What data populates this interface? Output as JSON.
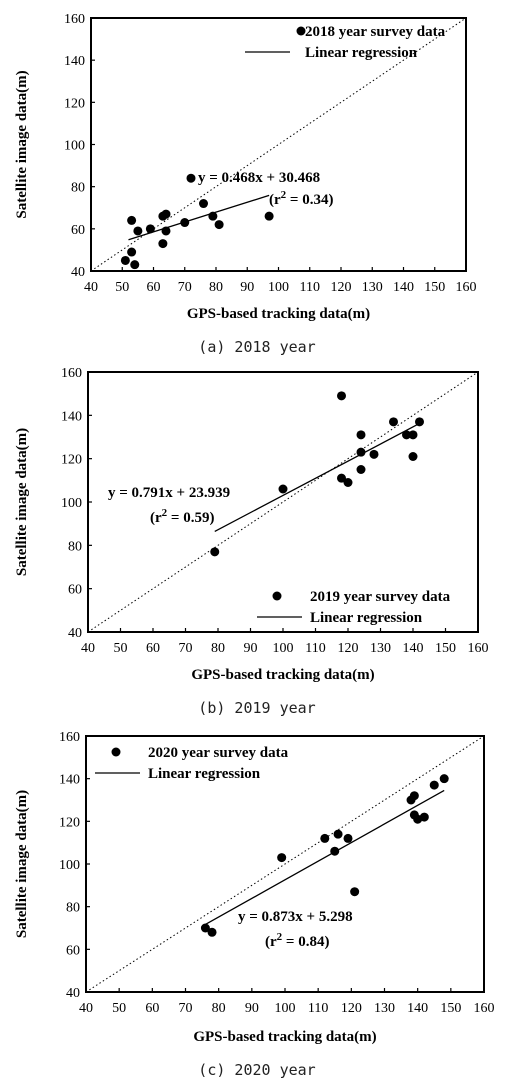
{
  "chart_data": [
    {
      "type": "scatter",
      "caption": "(a) 2018 year",
      "xlabel": "GPS-based tracking data(m)",
      "ylabel": "Satellite image data(m)",
      "xlim": [
        40,
        160
      ],
      "ylim": [
        40,
        160
      ],
      "xticks": [
        40,
        50,
        60,
        70,
        80,
        90,
        100,
        110,
        120,
        130,
        140,
        150,
        160
      ],
      "yticks": [
        40,
        60,
        80,
        100,
        120,
        140,
        160
      ],
      "legend": [
        "2018 year survey data",
        "Linear regression"
      ],
      "legend_position": "top-right",
      "equation": "y = 0.468x + 30.468",
      "r2_prefix": "(r",
      "r2_exp": "2",
      "r2_suffix": " = 0.34)",
      "regression": {
        "slope": 0.468,
        "intercept": 30.468,
        "x_range": [
          52,
          97
        ]
      },
      "identity_line": true,
      "points": [
        {
          "x": 51,
          "y": 45
        },
        {
          "x": 53,
          "y": 49
        },
        {
          "x": 53,
          "y": 64
        },
        {
          "x": 54,
          "y": 43
        },
        {
          "x": 55,
          "y": 59
        },
        {
          "x": 59,
          "y": 60
        },
        {
          "x": 63,
          "y": 53
        },
        {
          "x": 63,
          "y": 66
        },
        {
          "x": 64,
          "y": 59
        },
        {
          "x": 64,
          "y": 67
        },
        {
          "x": 70,
          "y": 63
        },
        {
          "x": 72,
          "y": 84
        },
        {
          "x": 76,
          "y": 72
        },
        {
          "x": 79,
          "y": 66
        },
        {
          "x": 81,
          "y": 62
        },
        {
          "x": 97,
          "y": 66
        }
      ]
    },
    {
      "type": "scatter",
      "caption": "(b) 2019 year",
      "xlabel": "GPS-based tracking data(m)",
      "ylabel": "Satellite image data(m)",
      "xlim": [
        40,
        160
      ],
      "ylim": [
        40,
        160
      ],
      "xticks": [
        40,
        50,
        60,
        70,
        80,
        90,
        100,
        110,
        120,
        130,
        140,
        150,
        160
      ],
      "yticks": [
        40,
        60,
        80,
        100,
        120,
        140,
        160
      ],
      "legend": [
        "2019 year survey data",
        "Linear regression"
      ],
      "legend_position": "bottom-right",
      "equation": "y = 0.791x + 23.939",
      "r2_prefix": "(r",
      "r2_exp": "2",
      "r2_suffix": " = 0.59)",
      "regression": {
        "slope": 0.791,
        "intercept": 23.939,
        "x_range": [
          79,
          142
        ]
      },
      "identity_line": true,
      "points": [
        {
          "x": 79,
          "y": 77
        },
        {
          "x": 100,
          "y": 106
        },
        {
          "x": 118,
          "y": 149
        },
        {
          "x": 118,
          "y": 111
        },
        {
          "x": 120,
          "y": 109
        },
        {
          "x": 124,
          "y": 131
        },
        {
          "x": 124,
          "y": 123
        },
        {
          "x": 124,
          "y": 115
        },
        {
          "x": 128,
          "y": 122
        },
        {
          "x": 134,
          "y": 137
        },
        {
          "x": 138,
          "y": 131
        },
        {
          "x": 140,
          "y": 131
        },
        {
          "x": 140,
          "y": 121
        },
        {
          "x": 142,
          "y": 137
        }
      ]
    },
    {
      "type": "scatter",
      "caption": "(c) 2020 year",
      "xlabel": "GPS-based tracking data(m)",
      "ylabel": "Satellite image data(m)",
      "xlim": [
        40,
        160
      ],
      "ylim": [
        40,
        160
      ],
      "xticks": [
        40,
        50,
        60,
        70,
        80,
        90,
        100,
        110,
        120,
        130,
        140,
        150,
        160
      ],
      "yticks": [
        40,
        60,
        80,
        100,
        120,
        140,
        160
      ],
      "legend": [
        "2020 year survey data",
        "Linear regression"
      ],
      "legend_position": "top-left",
      "equation": "y = 0.873x + 5.298",
      "r2_prefix": "(r",
      "r2_exp": "2",
      "r2_suffix": " = 0.84)",
      "regression": {
        "slope": 0.873,
        "intercept": 5.298,
        "x_range": [
          76,
          148
        ]
      },
      "identity_line": true,
      "points": [
        {
          "x": 76,
          "y": 70
        },
        {
          "x": 78,
          "y": 68
        },
        {
          "x": 99,
          "y": 103
        },
        {
          "x": 112,
          "y": 112
        },
        {
          "x": 115,
          "y": 106
        },
        {
          "x": 116,
          "y": 114
        },
        {
          "x": 119,
          "y": 112
        },
        {
          "x": 121,
          "y": 87
        },
        {
          "x": 138,
          "y": 130
        },
        {
          "x": 139,
          "y": 132
        },
        {
          "x": 139,
          "y": 123
        },
        {
          "x": 140,
          "y": 121
        },
        {
          "x": 142,
          "y": 122
        },
        {
          "x": 145,
          "y": 137
        },
        {
          "x": 148,
          "y": 140
        }
      ]
    }
  ]
}
